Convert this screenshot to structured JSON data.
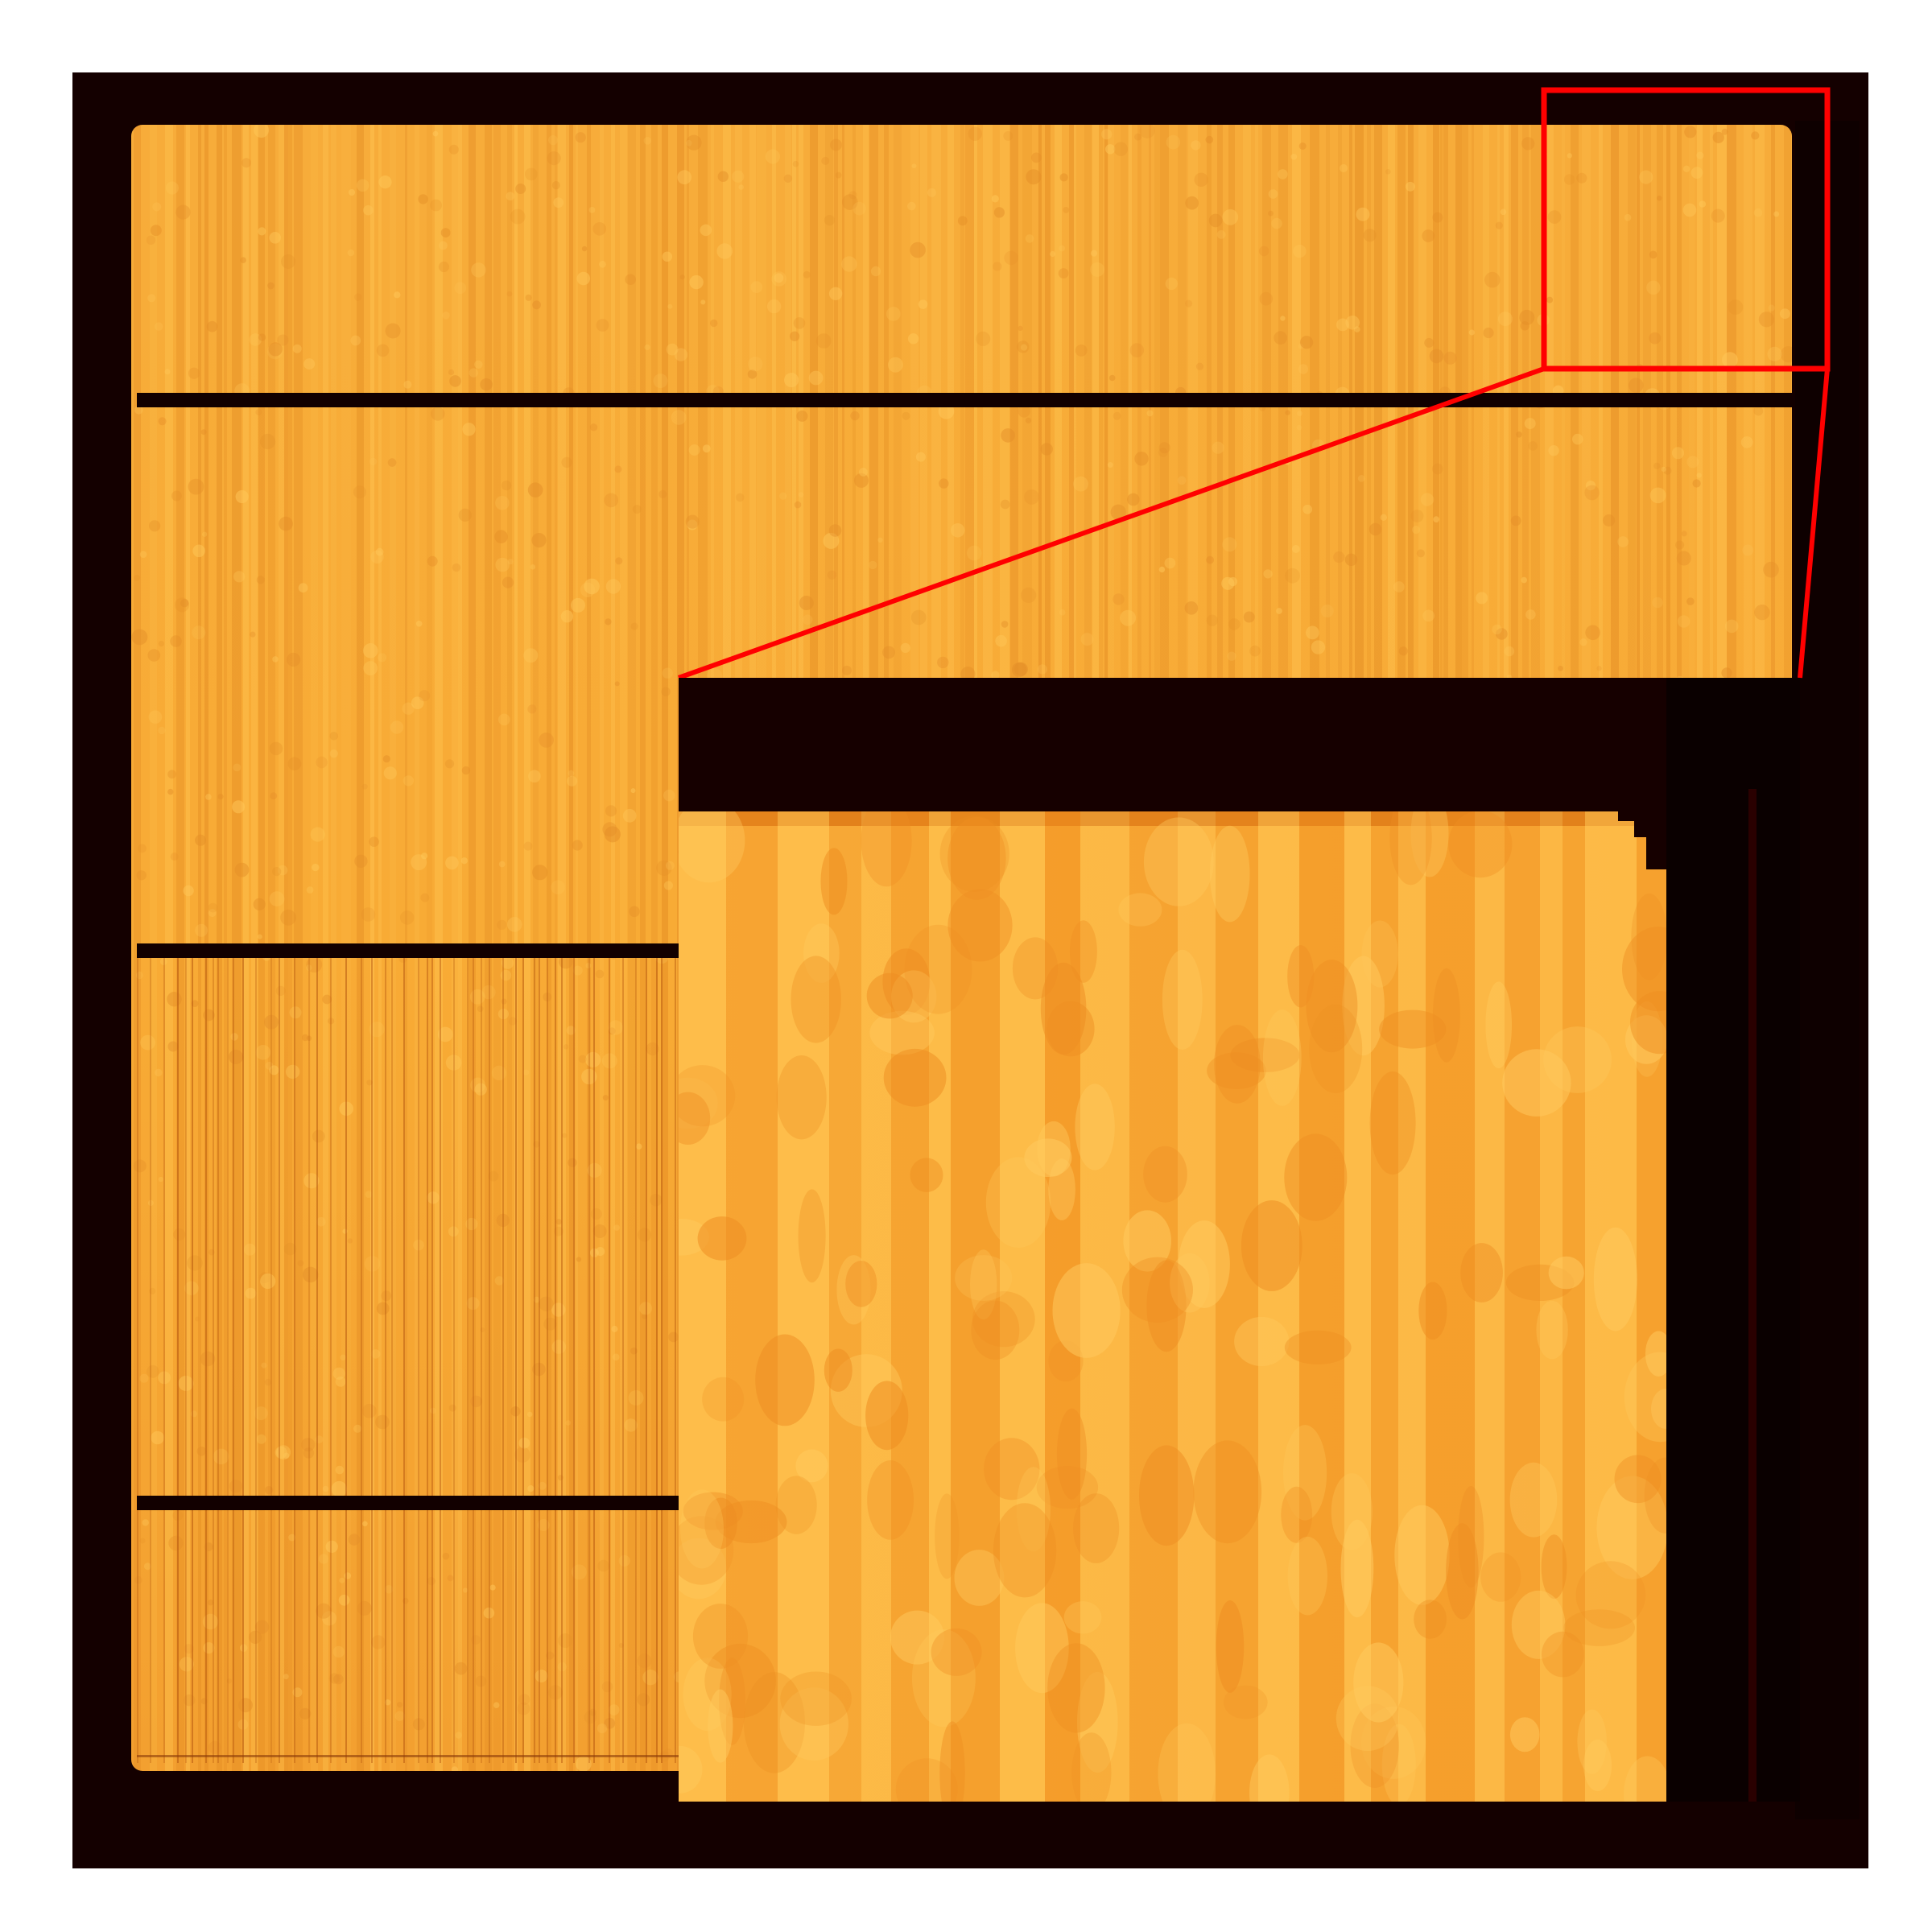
{
  "image": {
    "subject": "detector-flat-field-image-with-zoom-inset",
    "colormap": "afmhot",
    "colors": {
      "page_background": "#ffffff",
      "dark_background": "#140000",
      "sensor_base": "#f7a531",
      "sensor_light": "#ffc04a",
      "sensor_dark_stripe": "#d9781a",
      "panel_gap": "#120000",
      "zoom_indicator": "#ff0000"
    },
    "sensor_panels": 4,
    "inset_magnification_region": "top-right-corner",
    "text_labels": []
  }
}
